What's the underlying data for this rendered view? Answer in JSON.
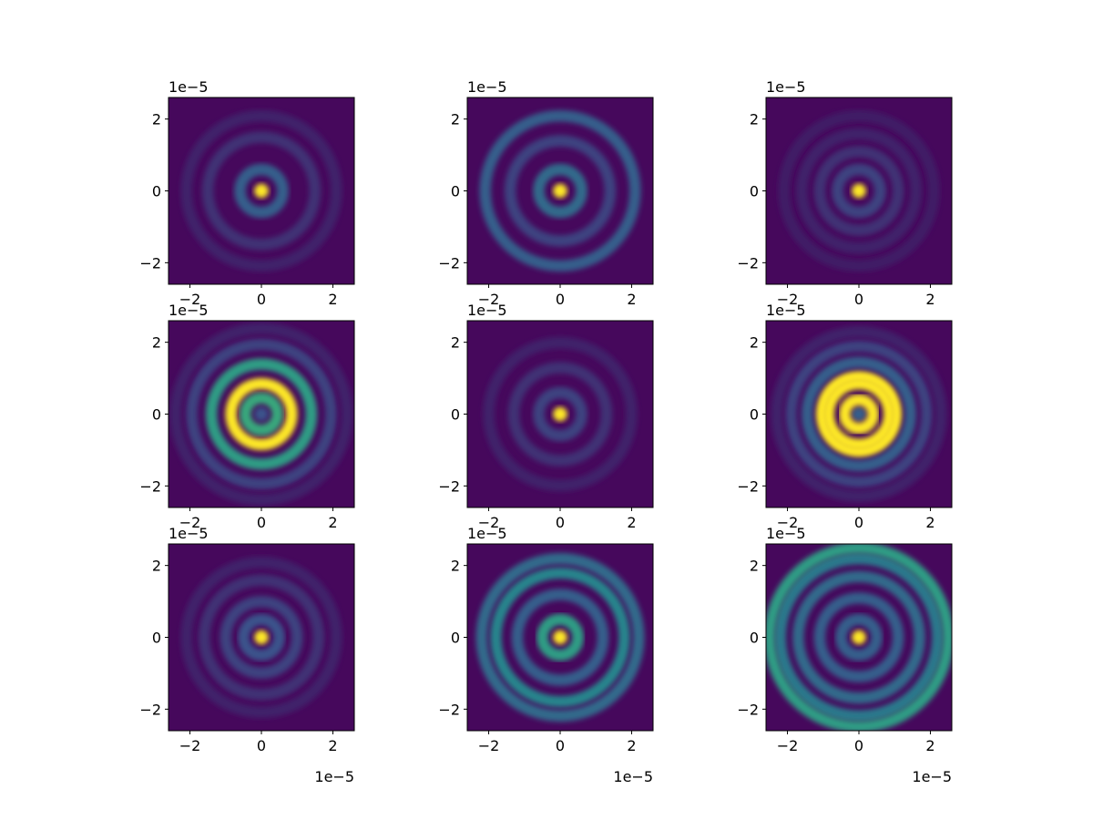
{
  "chart_data": [
    {
      "type": "image",
      "xlim": [
        -2.6,
        2.6
      ],
      "ylim": [
        -2.6,
        2.6
      ],
      "xticks": [
        {
          "value": -2,
          "label": "−2"
        },
        0,
        2
      ],
      "yticks": [
        {
          "value": -2,
          "label": "−2"
        },
        0,
        2
      ],
      "y_offset_label": "1e−5",
      "radii": [
        0,
        0.6,
        1.5,
        2.1
      ],
      "values": [
        1,
        0.3,
        0.15,
        0.1
      ]
    },
    {
      "type": "image",
      "xlim": [
        -2.6,
        2.6
      ],
      "ylim": [
        -2.6,
        2.6
      ],
      "xticks": [
        {
          "value": -2,
          "label": "−2"
        },
        0,
        2
      ],
      "yticks": [
        {
          "value": -2,
          "label": "−2"
        },
        0,
        2
      ],
      "y_offset_label": "1e−5",
      "radii": [
        0,
        0.6,
        1.4,
        2.1
      ],
      "values": [
        1,
        0.35,
        0.2,
        0.3
      ]
    },
    {
      "type": "image",
      "xlim": [
        -2.6,
        2.6
      ],
      "ylim": [
        -2.6,
        2.6
      ],
      "xticks": [
        {
          "value": -2,
          "label": "−2"
        },
        0,
        2
      ],
      "yticks": [
        {
          "value": -2,
          "label": "−2"
        },
        0,
        2
      ],
      "y_offset_label": "1e−5",
      "radii": [
        0,
        0.6,
        1.1,
        1.6,
        2.1
      ],
      "values": [
        1,
        0.2,
        0.15,
        0.1,
        0.08
      ]
    },
    {
      "type": "image",
      "xlim": [
        -2.6,
        2.6
      ],
      "ylim": [
        -2.6,
        2.6
      ],
      "xticks": [
        {
          "value": -2,
          "label": "−2"
        },
        0,
        2
      ],
      "yticks": [
        {
          "value": -2,
          "label": "−2"
        },
        0,
        2
      ],
      "y_offset_label": "1e−5",
      "radii": [
        0,
        0.45,
        0.85,
        1.4,
        1.95,
        2.4
      ],
      "values": [
        0.25,
        0.6,
        1,
        0.55,
        0.2,
        0.1
      ]
    },
    {
      "type": "image",
      "xlim": [
        -2.6,
        2.6
      ],
      "ylim": [
        -2.6,
        2.6
      ],
      "xticks": [
        {
          "value": -2,
          "label": "−2"
        },
        0,
        2
      ],
      "yticks": [
        {
          "value": -2,
          "label": "−2"
        },
        0,
        2
      ],
      "y_offset_label": "1e−5",
      "radii": [
        0,
        0.6,
        1.3,
        2.0
      ],
      "values": [
        1,
        0.2,
        0.15,
        0.1
      ]
    },
    {
      "type": "image",
      "xlim": [
        -2.6,
        2.6
      ],
      "ylim": [
        -2.6,
        2.6
      ],
      "xticks": [
        {
          "value": -2,
          "label": "−2"
        },
        0,
        2
      ],
      "yticks": [
        {
          "value": -2,
          "label": "−2"
        },
        0,
        2
      ],
      "y_offset_label": "1e−5",
      "radii": [
        0,
        0.4,
        0.85,
        1.05,
        1.45,
        1.9,
        2.3
      ],
      "values": [
        0.3,
        1,
        1,
        1,
        0.3,
        0.2,
        0.1
      ]
    },
    {
      "type": "image",
      "xlim": [
        -2.6,
        2.6
      ],
      "ylim": [
        -2.6,
        2.6
      ],
      "xticks": [
        {
          "value": -2,
          "label": "−2"
        },
        0,
        2
      ],
      "yticks": [
        {
          "value": -2,
          "label": "−2"
        },
        0,
        2
      ],
      "y_offset_label": "1e−5",
      "x_offset_label": "1e−5",
      "radii": [
        0,
        0.5,
        1.0,
        1.6,
        2.1
      ],
      "values": [
        1,
        0.25,
        0.2,
        0.15,
        0.1
      ]
    },
    {
      "type": "image",
      "xlim": [
        -2.6,
        2.6
      ],
      "ylim": [
        -2.6,
        2.6
      ],
      "xticks": [
        {
          "value": -2,
          "label": "−2"
        },
        0,
        2
      ],
      "yticks": [
        {
          "value": -2,
          "label": "−2"
        },
        0,
        2
      ],
      "y_offset_label": "1e−5",
      "x_offset_label": "1e−5",
      "radii": [
        0,
        0.5,
        1.2,
        1.8,
        2.2
      ],
      "values": [
        1,
        0.55,
        0.3,
        0.45,
        0.35
      ]
    },
    {
      "type": "image",
      "xlim": [
        -2.6,
        2.6
      ],
      "ylim": [
        -2.6,
        2.6
      ],
      "xticks": [
        {
          "value": -2,
          "label": "−2"
        },
        0,
        2
      ],
      "yticks": [
        {
          "value": -2,
          "label": "−2"
        },
        0,
        2
      ],
      "y_offset_label": "1e−5",
      "x_offset_label": "1e−5",
      "radii": [
        0,
        0.5,
        1.1,
        1.7,
        2.2,
        2.5
      ],
      "values": [
        1,
        0.3,
        0.3,
        0.35,
        0.4,
        0.55
      ]
    }
  ]
}
